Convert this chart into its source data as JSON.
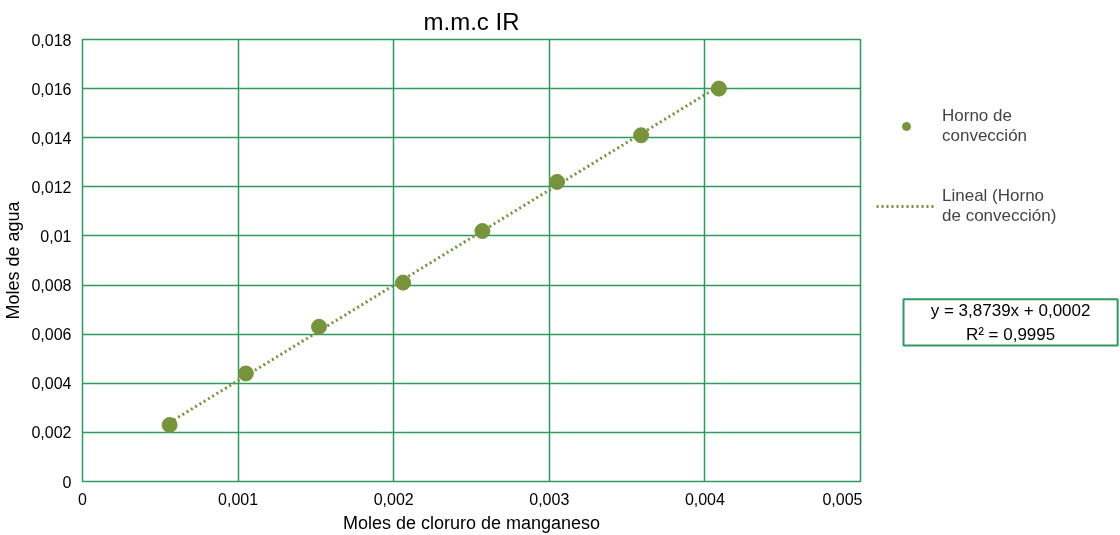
{
  "chart_data": {
    "type": "scatter",
    "title": "m.m.c IR",
    "xlabel": "Moles de cloruro de manganeso",
    "ylabel": "Moles de agua",
    "x": [
      0.00056,
      0.00105,
      0.00152,
      0.00206,
      0.00257,
      0.00305,
      0.00359,
      0.00409
    ],
    "series": [
      {
        "name": "Horno de convección",
        "color": "#77933c",
        "marker": "circle",
        "values": [
          0.0023,
          0.0044,
          0.0063,
          0.0081,
          0.0102,
          0.0122,
          0.0141,
          0.016
        ]
      },
      {
        "name": "Lineal (Horno de convección)",
        "type": "line",
        "color": "#77933c",
        "line_style": "dotted",
        "x": [
          0.00056,
          0.00409
        ],
        "values": [
          0.0024,
          0.0161
        ]
      }
    ],
    "xlim": [
      0,
      0.005
    ],
    "xticks": [
      {
        "value": 0,
        "label": "0"
      },
      {
        "value": 0.001,
        "label": "0,001"
      },
      {
        "value": 0.002,
        "label": "0,002"
      },
      {
        "value": 0.003,
        "label": "0,003"
      },
      {
        "value": 0.004,
        "label": "0,004"
      },
      {
        "value": 0.005,
        "label": "0,005"
      }
    ],
    "ylim": [
      0,
      0.018
    ],
    "yticks": [
      {
        "value": 0,
        "label": "0"
      },
      {
        "value": 0.002,
        "label": "0,002"
      },
      {
        "value": 0.004,
        "label": "0,004"
      },
      {
        "value": 0.006,
        "label": "0,006"
      },
      {
        "value": 0.008,
        "label": "0,008"
      },
      {
        "value": 0.01,
        "label": "0,01"
      },
      {
        "value": 0.012,
        "label": "0,012"
      },
      {
        "value": 0.014,
        "label": "0,014"
      },
      {
        "value": 0.016,
        "label": "0,016"
      },
      {
        "value": 0.018,
        "label": "0,018"
      }
    ],
    "grid": true,
    "legend": "right",
    "annotations": [
      "y = 3,8739x + 0,0002\nR² = 0,9995"
    ]
  }
}
